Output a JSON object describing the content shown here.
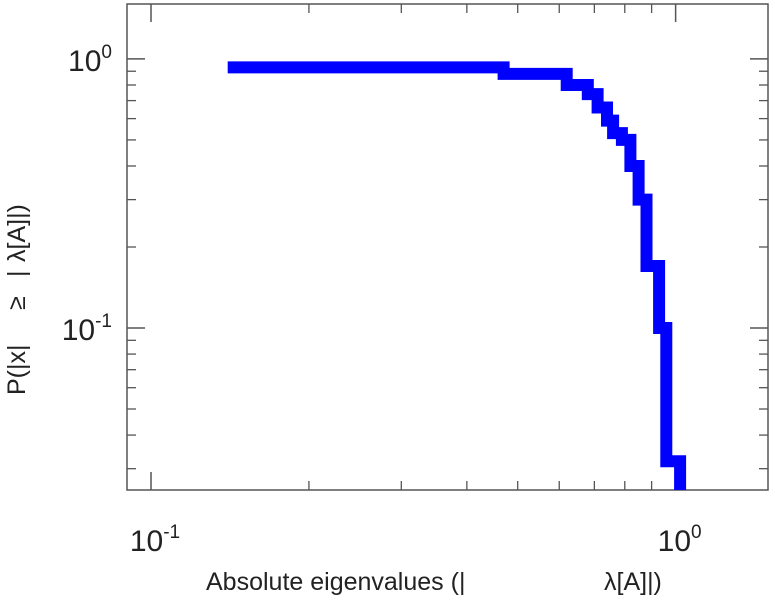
{
  "chart_data": {
    "type": "line",
    "subtype": "step",
    "scale": {
      "x": "log",
      "y": "log"
    },
    "xlim": [
      0.09,
      1.5
    ],
    "ylim": [
      0.025,
      1.6
    ],
    "grid": false,
    "xlabel_parts": [
      "Absolute eigenvalues (|",
      "λ[A]|)"
    ],
    "ylabel_parts": [
      "P(|x|",
      "≥",
      "|",
      "λ[A]|)"
    ],
    "x_ticks": [
      {
        "base": "10",
        "exp": "-1",
        "value": 0.1
      },
      {
        "base": "10",
        "exp": "0",
        "value": 1.0
      }
    ],
    "y_ticks": [
      {
        "base": "10",
        "exp": "-1",
        "value": 0.1
      },
      {
        "base": "10",
        "exp": "0",
        "value": 1.0
      }
    ],
    "series": [
      {
        "color": "#0000ff",
        "x": [
          0.14,
          0.47,
          0.47,
          0.62,
          0.62,
          0.68,
          0.68,
          0.71,
          0.71,
          0.74,
          0.74,
          0.76,
          0.76,
          0.79,
          0.79,
          0.82,
          0.82,
          0.85,
          0.85,
          0.88,
          0.88,
          0.93,
          0.93,
          0.96,
          0.96,
          1.02,
          1.02
        ],
        "y": [
          0.93,
          0.93,
          0.88,
          0.88,
          0.8,
          0.8,
          0.74,
          0.74,
          0.66,
          0.66,
          0.59,
          0.59,
          0.53,
          0.53,
          0.5,
          0.5,
          0.4,
          0.4,
          0.3,
          0.3,
          0.17,
          0.17,
          0.1,
          0.1,
          0.032,
          0.032,
          0.025
        ]
      }
    ]
  }
}
